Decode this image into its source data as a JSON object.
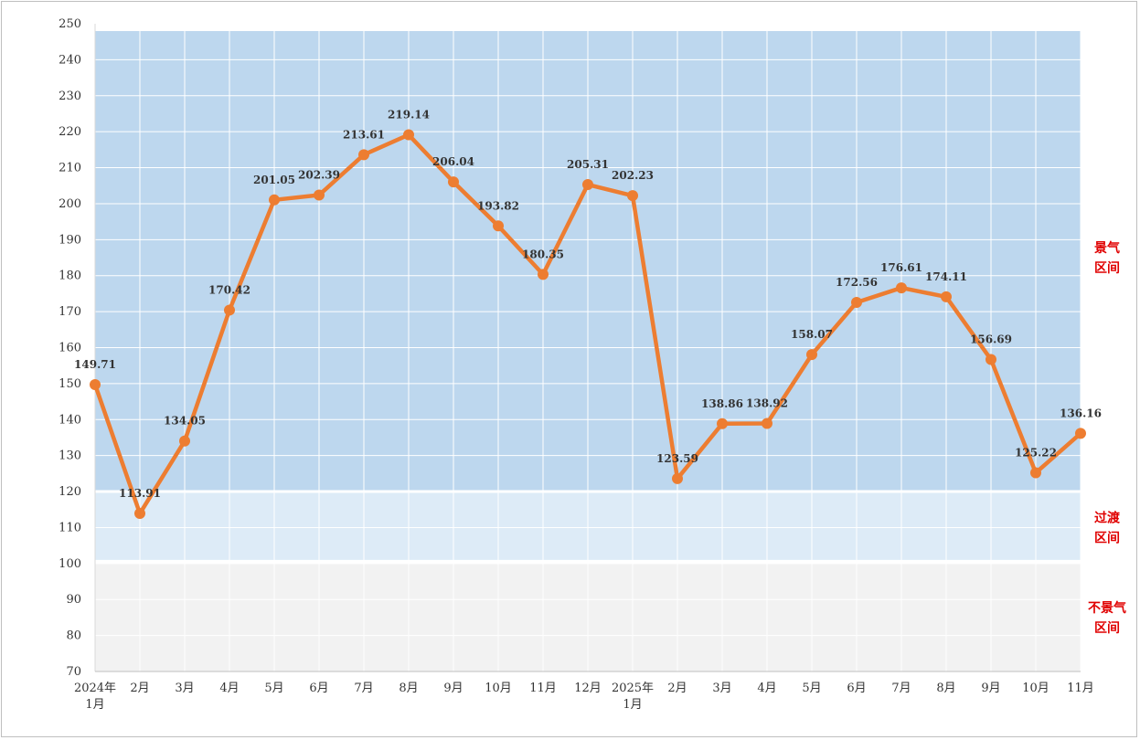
{
  "chart_data": {
    "type": "line",
    "title": "",
    "xlabel": "",
    "ylabel": "",
    "ylim": [
      70,
      250
    ],
    "y_ticks": [
      70,
      80,
      90,
      100,
      110,
      120,
      130,
      140,
      150,
      160,
      170,
      180,
      190,
      200,
      210,
      220,
      230,
      240,
      250
    ],
    "categories": [
      "2024年 1月",
      "2月",
      "3月",
      "4月",
      "5月",
      "6月",
      "7月",
      "8月",
      "9月",
      "10月",
      "11月",
      "12月",
      "2025年 1月",
      "2月",
      "3月",
      "4月",
      "5月",
      "6月",
      "7月",
      "8月",
      "9月",
      "10月",
      "11月"
    ],
    "series": [
      {
        "values": [
          149.71,
          113.91,
          134.05,
          170.42,
          201.05,
          202.39,
          213.61,
          219.14,
          206.04,
          193.82,
          180.35,
          205.31,
          202.23,
          123.59,
          138.86,
          138.92,
          158.07,
          172.56,
          176.61,
          174.11,
          156.69,
          125.22,
          136.16
        ],
        "labels": [
          "149.71",
          "113.91",
          "134.05",
          "170.42",
          "201.05",
          "202.39",
          "213.61",
          "219.14",
          "206.04",
          "193.82",
          "180.35",
          "205.31",
          "202.23",
          "123.59",
          "138.86",
          "138.92",
          "158.07",
          "172.56",
          "176.61",
          "174.11",
          "156.69",
          "125.22",
          "136.16"
        ],
        "color": "#ed7d31"
      }
    ],
    "bands": [
      {
        "from": 120,
        "to": 250,
        "color": "#bdd7ee",
        "label_lines": [
          "景气",
          "区间"
        ]
      },
      {
        "from": 100,
        "to": 120,
        "color": "#ddebf7",
        "label_lines": [
          "过渡",
          "区间"
        ]
      },
      {
        "from": 70,
        "to": 100,
        "color": "#f2f2f2",
        "label_lines": [
          "不景气",
          "区间"
        ]
      }
    ],
    "band_label_color": "#e00000",
    "grid": true,
    "legend": "none"
  }
}
